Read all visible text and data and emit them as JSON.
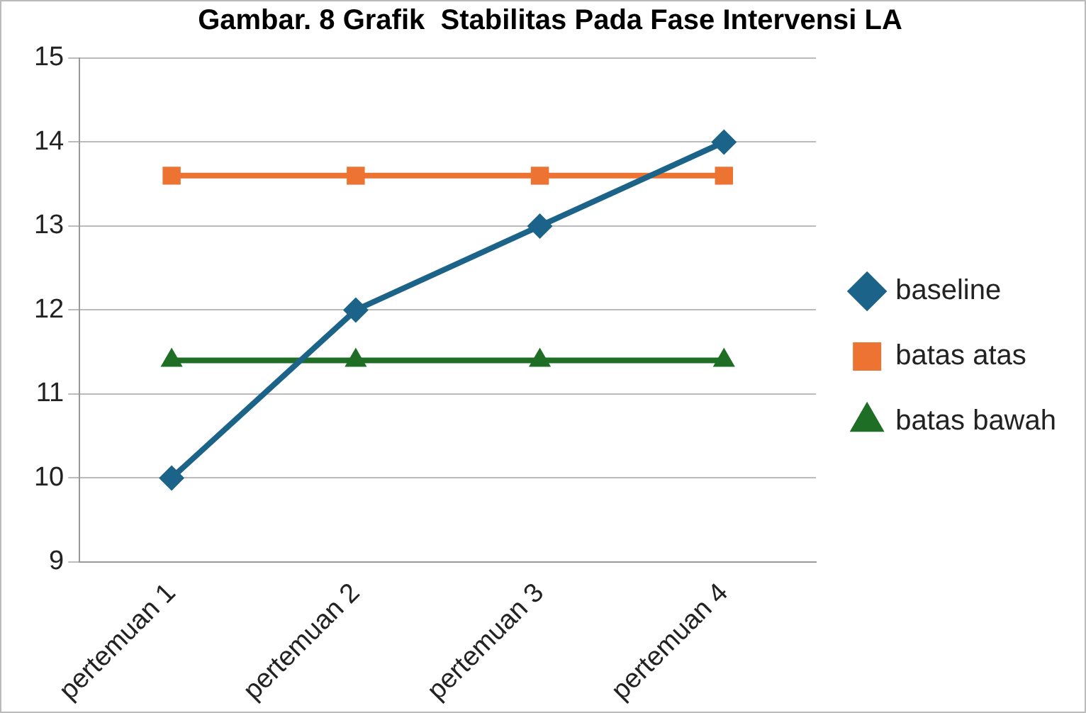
{
  "chart_data": {
    "type": "line",
    "title": "Gambar. 8 Grafik  Stabilitas Pada Fase Intervensi LA",
    "categories": [
      "pertemuan 1",
      "pertemuan 2",
      "pertemuan 3",
      "pertemuan 4"
    ],
    "series": [
      {
        "name": "baseline",
        "color": "#1b6389",
        "marker": "diamond",
        "values": [
          10,
          12,
          13,
          14
        ]
      },
      {
        "name": "batas atas",
        "color": "#ed7333",
        "marker": "square",
        "values": [
          13.6,
          13.6,
          13.6,
          13.6
        ]
      },
      {
        "name": "batas bawah",
        "color": "#1e6e25",
        "marker": "triangle",
        "values": [
          11.4,
          11.4,
          11.4,
          11.4
        ]
      }
    ],
    "ylim": [
      9,
      15
    ],
    "yticks": [
      9,
      10,
      11,
      12,
      13,
      14,
      15
    ],
    "grid": "y",
    "legend": "right",
    "line_style": "solid"
  }
}
